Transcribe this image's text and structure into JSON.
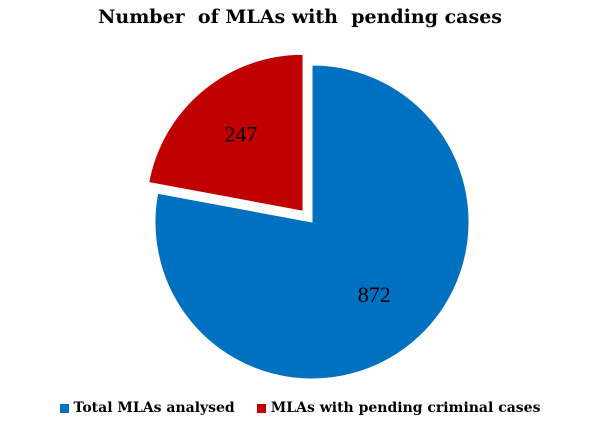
{
  "chart_data": {
    "type": "pie",
    "title": "Number  of MLAs with  pending cases",
    "categories": [
      "Total MLAs analysed",
      "MLAs with pending criminal cases"
    ],
    "values": [
      872,
      247
    ],
    "colors": [
      "#0070C0",
      "#C00000"
    ],
    "exploded": [
      false,
      true
    ],
    "legend_position": "bottom"
  }
}
